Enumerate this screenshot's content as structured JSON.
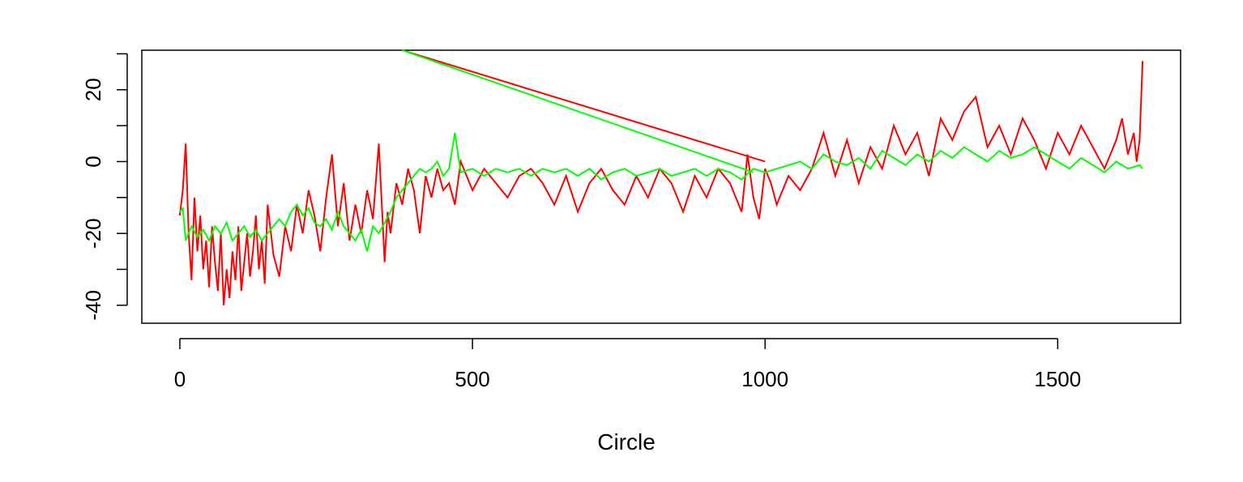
{
  "chart_data": {
    "type": "line",
    "title": "",
    "xlabel": "Circle",
    "ylabel": "",
    "xlim": [
      -65,
      1710
    ],
    "ylim": [
      -45,
      31
    ],
    "xticks": [
      0,
      500,
      1000,
      1500
    ],
    "xtick_labels": [
      "0",
      "500",
      "1000",
      "1500"
    ],
    "yticks": [
      -40,
      -30,
      -20,
      -10,
      0,
      10,
      20,
      30
    ],
    "ytick_labels": [
      {
        "value": -40,
        "label": "-40"
      },
      {
        "value": -20,
        "label": "-20"
      },
      {
        "value": 0,
        "label": "0"
      },
      {
        "value": 20,
        "label": "20"
      }
    ],
    "grid": false,
    "legend": "none",
    "series": [
      {
        "color": "#ff0000",
        "x": [
          0,
          5,
          10,
          15,
          20,
          25,
          30,
          35,
          40,
          45,
          50,
          55,
          60,
          65,
          70,
          75,
          80,
          85,
          90,
          95,
          100,
          105,
          110,
          115,
          120,
          125,
          130,
          135,
          140,
          145,
          150,
          160,
          170,
          180,
          190,
          200,
          210,
          220,
          230,
          240,
          250,
          260,
          270,
          280,
          290,
          300,
          310,
          320,
          330,
          340,
          350,
          355,
          360,
          370,
          380,
          390,
          400,
          410,
          420,
          430,
          440,
          450,
          460,
          470,
          480,
          490,
          500,
          520,
          540,
          560,
          580,
          600,
          620,
          640,
          660,
          680,
          700,
          720,
          740,
          760,
          780,
          800,
          820,
          840,
          860,
          880,
          900,
          920,
          940,
          960,
          970,
          980,
          990,
          1000,
          1010,
          1020,
          1040,
          1060,
          1080,
          1100,
          1120,
          1140,
          1160,
          1180,
          1200,
          1220,
          1240,
          1260,
          1280,
          1300,
          1320,
          1340,
          1360,
          1380,
          1400,
          1420,
          1440,
          1460,
          1480,
          1500,
          1520,
          1540,
          1560,
          1580,
          1600,
          1610,
          1620,
          1630,
          1635,
          1640,
          1645,
          380,
          1000
        ],
        "y": [
          -15,
          -8,
          5,
          -20,
          -33,
          -10,
          -25,
          -15,
          -30,
          -22,
          -35,
          -18,
          -28,
          -36,
          -20,
          -40,
          -30,
          -38,
          -25,
          -33,
          -18,
          -36,
          -28,
          -20,
          -32,
          -25,
          -15,
          -30,
          -22,
          -34,
          -12,
          -26,
          -32,
          -18,
          -25,
          -12,
          -20,
          -8,
          -15,
          -25,
          -10,
          2,
          -18,
          -6,
          -22,
          -12,
          -20,
          -8,
          -16,
          5,
          -28,
          -14,
          -20,
          -6,
          -12,
          -2,
          -8,
          -20,
          -4,
          -10,
          -2,
          -8,
          -6,
          -12,
          0,
          -4,
          -8,
          -2,
          -6,
          -10,
          -4,
          -2,
          -6,
          -12,
          -4,
          -14,
          -6,
          -2,
          -8,
          -12,
          -4,
          -10,
          -2,
          -6,
          -14,
          -4,
          -10,
          -2,
          -6,
          -14,
          2,
          -10,
          -16,
          -2,
          -6,
          -12,
          -4,
          -8,
          -2,
          8,
          -4,
          6,
          -6,
          4,
          -2,
          10,
          2,
          8,
          -4,
          12,
          6,
          14,
          18,
          4,
          10,
          2,
          12,
          6,
          -2,
          8,
          2,
          10,
          4,
          -2,
          6,
          12,
          2,
          8,
          0,
          6,
          28,
          2,
          -6
        ],
        "line_from": [
          380,
          31
        ],
        "line_to": [
          1000,
          0
        ]
      },
      {
        "color": "#00ff00",
        "x": [
          0,
          5,
          10,
          15,
          20,
          30,
          40,
          50,
          60,
          70,
          80,
          90,
          100,
          110,
          120,
          130,
          140,
          150,
          160,
          170,
          180,
          190,
          200,
          210,
          220,
          230,
          240,
          250,
          260,
          270,
          280,
          290,
          300,
          310,
          320,
          330,
          340,
          350,
          360,
          370,
          380,
          390,
          400,
          410,
          420,
          430,
          440,
          450,
          460,
          470,
          480,
          500,
          520,
          540,
          560,
          580,
          600,
          620,
          640,
          660,
          680,
          700,
          720,
          740,
          760,
          780,
          800,
          820,
          840,
          860,
          880,
          900,
          920,
          940,
          960,
          980,
          1000,
          1020,
          1040,
          1060,
          1080,
          1100,
          1120,
          1140,
          1160,
          1180,
          1200,
          1220,
          1240,
          1260,
          1280,
          1300,
          1320,
          1340,
          1360,
          1380,
          1400,
          1420,
          1440,
          1460,
          1480,
          1500,
          1520,
          1540,
          1560,
          1580,
          1600,
          1620,
          1640,
          1645,
          380,
          980
        ],
        "y": [
          -14,
          -13,
          -22,
          -20,
          -18,
          -21,
          -19,
          -22,
          -18,
          -20,
          -17,
          -22,
          -20,
          -18,
          -21,
          -19,
          -22,
          -20,
          -18,
          -16,
          -18,
          -14,
          -12,
          -15,
          -13,
          -17,
          -18,
          -16,
          -19,
          -14,
          -18,
          -20,
          -22,
          -19,
          -25,
          -18,
          -20,
          -17,
          -14,
          -10,
          -8,
          -6,
          -4,
          -2,
          -3,
          -2,
          0,
          -4,
          -2,
          8,
          -3,
          -2,
          -4,
          -2,
          -3,
          -2,
          -4,
          -2,
          -3,
          -2,
          -4,
          -2,
          -5,
          -3,
          -2,
          -4,
          -3,
          -2,
          -4,
          -3,
          -2,
          -4,
          -2,
          -3,
          -5,
          -2,
          -3,
          -2,
          -1,
          0,
          -2,
          2,
          0,
          -1,
          1,
          -2,
          3,
          1,
          -1,
          2,
          0,
          3,
          1,
          4,
          2,
          0,
          3,
          1,
          2,
          4,
          2,
          0,
          -2,
          1,
          -1,
          -3,
          0,
          -2,
          -1,
          -2,
          31,
          -3
        ],
        "line_from": [
          380,
          31
        ],
        "line_to": [
          980,
          -3
        ]
      }
    ]
  }
}
